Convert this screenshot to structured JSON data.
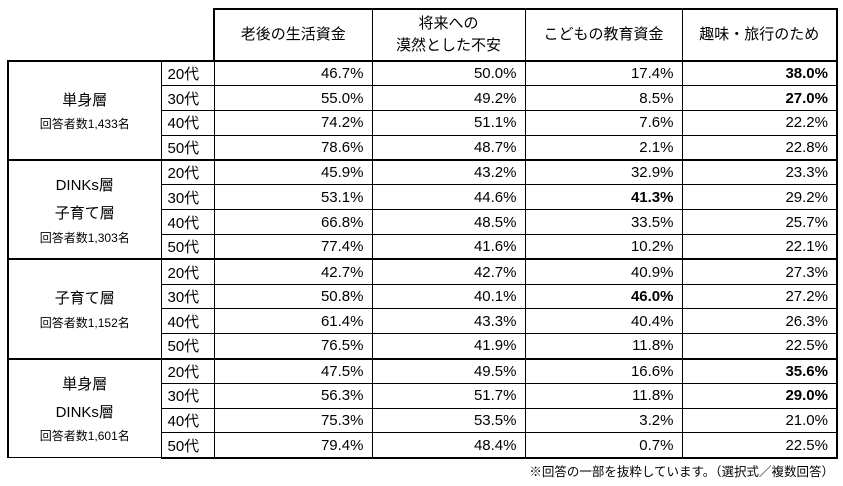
{
  "chart_data": {
    "type": "table",
    "title": "",
    "column_headers": [
      "老後の生活資金",
      "将来への\n漠然とした不安",
      "こどもの教育資金",
      "趣味・旅行のため"
    ],
    "age_labels": [
      "20代",
      "30代",
      "40代",
      "50代"
    ],
    "groups": [
      {
        "label_lines": [
          "単身層"
        ],
        "respondents": "回答者数1,433名",
        "rows": [
          {
            "age": "20代",
            "values": [
              "46.7%",
              "50.0%",
              "17.4%",
              "38.0%"
            ],
            "bold": [
              false,
              false,
              false,
              true
            ]
          },
          {
            "age": "30代",
            "values": [
              "55.0%",
              "49.2%",
              "8.5%",
              "27.0%"
            ],
            "bold": [
              false,
              false,
              false,
              true
            ]
          },
          {
            "age": "40代",
            "values": [
              "74.2%",
              "51.1%",
              "7.6%",
              "22.2%"
            ],
            "bold": [
              false,
              false,
              false,
              false
            ]
          },
          {
            "age": "50代",
            "values": [
              "78.6%",
              "48.7%",
              "2.1%",
              "22.8%"
            ],
            "bold": [
              false,
              false,
              false,
              false
            ]
          }
        ]
      },
      {
        "label_lines": [
          "DINKs層",
          "子育て層"
        ],
        "respondents": "回答者数1,303名",
        "rows": [
          {
            "age": "20代",
            "values": [
              "45.9%",
              "43.2%",
              "32.9%",
              "23.3%"
            ],
            "bold": [
              false,
              false,
              false,
              false
            ]
          },
          {
            "age": "30代",
            "values": [
              "53.1%",
              "44.6%",
              "41.3%",
              "29.2%"
            ],
            "bold": [
              false,
              false,
              true,
              false
            ]
          },
          {
            "age": "40代",
            "values": [
              "66.8%",
              "48.5%",
              "33.5%",
              "25.7%"
            ],
            "bold": [
              false,
              false,
              false,
              false
            ]
          },
          {
            "age": "50代",
            "values": [
              "77.4%",
              "41.6%",
              "10.2%",
              "22.1%"
            ],
            "bold": [
              false,
              false,
              false,
              false
            ]
          }
        ]
      },
      {
        "label_lines": [
          "子育て層"
        ],
        "respondents": "回答者数1,152名",
        "rows": [
          {
            "age": "20代",
            "values": [
              "42.7%",
              "42.7%",
              "40.9%",
              "27.3%"
            ],
            "bold": [
              false,
              false,
              false,
              false
            ]
          },
          {
            "age": "30代",
            "values": [
              "50.8%",
              "40.1%",
              "46.0%",
              "27.2%"
            ],
            "bold": [
              false,
              false,
              true,
              false
            ]
          },
          {
            "age": "40代",
            "values": [
              "61.4%",
              "43.3%",
              "40.4%",
              "26.3%"
            ],
            "bold": [
              false,
              false,
              false,
              false
            ]
          },
          {
            "age": "50代",
            "values": [
              "76.5%",
              "41.9%",
              "11.8%",
              "22.5%"
            ],
            "bold": [
              false,
              false,
              false,
              false
            ]
          }
        ]
      },
      {
        "label_lines": [
          "単身層",
          "DINKs層"
        ],
        "respondents": "回答者数1,601名",
        "rows": [
          {
            "age": "20代",
            "values": [
              "47.5%",
              "49.5%",
              "16.6%",
              "35.6%"
            ],
            "bold": [
              false,
              false,
              false,
              true
            ]
          },
          {
            "age": "30代",
            "values": [
              "56.3%",
              "51.7%",
              "11.8%",
              "29.0%"
            ],
            "bold": [
              false,
              false,
              false,
              true
            ]
          },
          {
            "age": "40代",
            "values": [
              "75.3%",
              "53.5%",
              "3.2%",
              "21.0%"
            ],
            "bold": [
              false,
              false,
              false,
              false
            ]
          },
          {
            "age": "50代",
            "values": [
              "79.4%",
              "48.4%",
              "0.7%",
              "22.5%"
            ],
            "bold": [
              false,
              false,
              false,
              false
            ]
          }
        ]
      }
    ],
    "footnote": "※回答の一部を抜粋しています。（選択式／複数回答）",
    "colors": {
      "text": "#000000",
      "border": "#000000",
      "background": "#ffffff"
    }
  }
}
